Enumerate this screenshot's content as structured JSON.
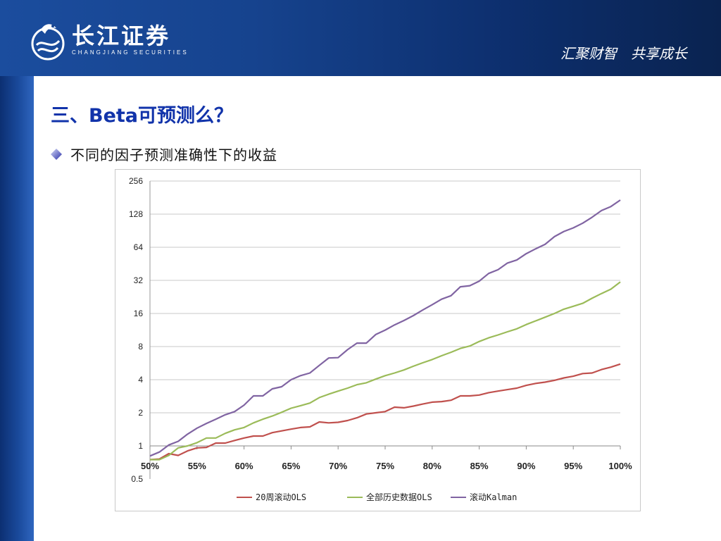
{
  "header": {
    "logo_cn": "长江证券",
    "logo_en": "CHANGJIANG SECURITIES",
    "slogan": "汇聚财智　共享成长"
  },
  "slide": {
    "title": "三、Beta可预测么？",
    "bullet": "不同的因子预测准确性下的收益"
  },
  "colors": {
    "header": "#16438e",
    "title": "#1133aa",
    "series_ols20": "#c0504d",
    "series_ols_all": "#9bbb59",
    "series_kalman": "#8064a2"
  },
  "chart_data": {
    "type": "line",
    "title": "",
    "xlabel": "",
    "ylabel": "",
    "yscale": "log2",
    "xlim": [
      50,
      100
    ],
    "ylim": [
      0.5,
      256
    ],
    "grid": "horizontal",
    "legend": "bottom",
    "x_ticks": [
      "50%",
      "55%",
      "60%",
      "65%",
      "70%",
      "75%",
      "80%",
      "85%",
      "90%",
      "95%",
      "100%"
    ],
    "y_ticks": [
      "256",
      "128",
      "64",
      "32",
      "16",
      "8",
      "4",
      "2",
      "1",
      "0.5"
    ],
    "x": [
      50,
      51,
      52,
      53,
      54,
      55,
      56,
      57,
      58,
      59,
      60,
      61,
      62,
      63,
      64,
      65,
      66,
      67,
      68,
      69,
      70,
      71,
      72,
      73,
      74,
      75,
      76,
      77,
      78,
      79,
      80,
      81,
      82,
      83,
      84,
      85,
      86,
      87,
      88,
      89,
      90,
      91,
      92,
      93,
      94,
      95,
      96,
      97,
      98,
      99,
      100
    ],
    "series": [
      {
        "name": "20周滚动OLS",
        "values": [
          0.75,
          0.76,
          0.85,
          0.82,
          0.9,
          0.96,
          0.97,
          1.06,
          1.06,
          1.12,
          1.18,
          1.23,
          1.23,
          1.32,
          1.37,
          1.42,
          1.47,
          1.49,
          1.65,
          1.62,
          1.64,
          1.7,
          1.8,
          1.95,
          2.0,
          2.05,
          2.25,
          2.22,
          2.3,
          2.4,
          2.5,
          2.53,
          2.6,
          2.85,
          2.85,
          2.9,
          3.05,
          3.15,
          3.25,
          3.35,
          3.55,
          3.7,
          3.8,
          3.95,
          4.15,
          4.3,
          4.55,
          4.6,
          4.95,
          5.2,
          5.55
        ]
      },
      {
        "name": "全部历史数据OLS",
        "values": [
          0.75,
          0.75,
          0.82,
          0.96,
          1.0,
          1.07,
          1.18,
          1.18,
          1.3,
          1.4,
          1.47,
          1.62,
          1.75,
          1.87,
          2.02,
          2.2,
          2.32,
          2.45,
          2.75,
          2.95,
          3.15,
          3.35,
          3.6,
          3.75,
          4.05,
          4.35,
          4.6,
          4.9,
          5.3,
          5.7,
          6.1,
          6.6,
          7.1,
          7.7,
          8.1,
          8.9,
          9.6,
          10.2,
          10.9,
          11.6,
          12.7,
          13.7,
          14.8,
          16.0,
          17.5,
          18.6,
          19.8,
          22.0,
          24.3,
          26.6,
          31.0
        ]
      },
      {
        "name": "滚动Kalman",
        "values": [
          0.81,
          0.88,
          1.02,
          1.1,
          1.28,
          1.45,
          1.6,
          1.75,
          1.92,
          2.05,
          2.35,
          2.85,
          2.85,
          3.3,
          3.45,
          4.0,
          4.35,
          4.6,
          5.4,
          6.3,
          6.35,
          7.5,
          8.6,
          8.6,
          10.3,
          11.3,
          12.6,
          13.8,
          15.3,
          17.2,
          19.2,
          21.6,
          23.2,
          28.0,
          28.6,
          31.5,
          37.0,
          40.0,
          46.0,
          49.0,
          56.0,
          62.0,
          68.0,
          80.0,
          89.0,
          96.0,
          106.0,
          120.0,
          138.0,
          150.0,
          172.0
        ]
      }
    ]
  }
}
